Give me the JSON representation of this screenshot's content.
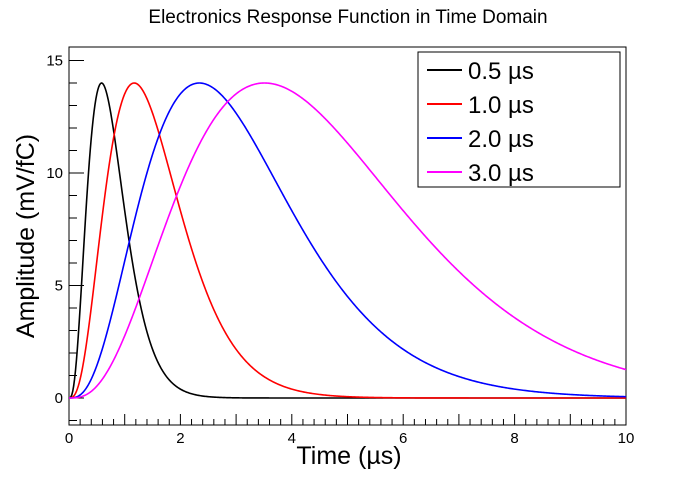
{
  "chart_data": {
    "type": "line",
    "title": "Electronics Response Function in Time Domain",
    "xlabel": "Time (µs)",
    "ylabel": "Amplitude (mV/fC)",
    "xlim": [
      0,
      10
    ],
    "ylim": [
      -1.2,
      15.6
    ],
    "x_ticks": [
      "0",
      "2",
      "4",
      "6",
      "8",
      "10"
    ],
    "y_ticks": [
      "0",
      "5",
      "10",
      "15"
    ],
    "grid": false,
    "legend_position": "top-right",
    "series": [
      {
        "name": "0.5 µs",
        "color": "#000000",
        "shaping_time_us": 0.5,
        "peak_value": 14.0
      },
      {
        "name": "1.0 µs",
        "color": "#ff0000",
        "shaping_time_us": 1.0,
        "peak_value": 14.0
      },
      {
        "name": "2.0 µs",
        "color": "#0000ff",
        "shaping_time_us": 2.0,
        "peak_value": 14.0
      },
      {
        "name": "3.0 µs",
        "color": "#ff00ff",
        "shaping_time_us": 3.0,
        "peak_value": 14.0
      }
    ]
  }
}
